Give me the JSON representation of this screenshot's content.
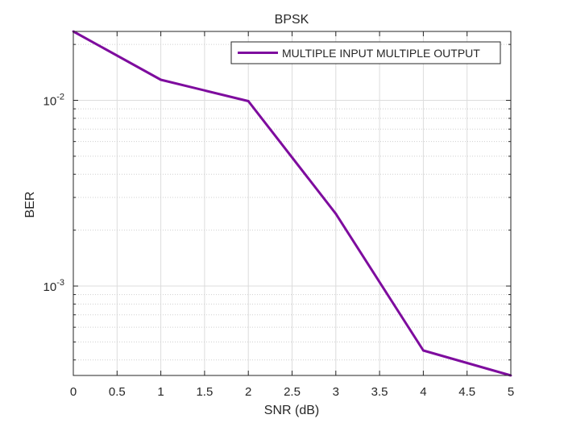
{
  "chart_data": {
    "type": "line",
    "title": "BPSK",
    "xlabel": "SNR (dB)",
    "ylabel": "BER",
    "yscale": "log",
    "xlim": [
      0,
      5
    ],
    "ylim": [
      0.00033,
      0.0235
    ],
    "grid": true,
    "minor_grid": true,
    "legend_location": "top-right",
    "x_ticks": [
      {
        "value": 0,
        "label": "0"
      },
      {
        "value": 0.5,
        "label": "0.5"
      },
      {
        "value": 1,
        "label": "1"
      },
      {
        "value": 1.5,
        "label": "1.5"
      },
      {
        "value": 2,
        "label": "2"
      },
      {
        "value": 2.5,
        "label": "2.5"
      },
      {
        "value": 3,
        "label": "3"
      },
      {
        "value": 3.5,
        "label": "3.5"
      },
      {
        "value": 4,
        "label": "4"
      },
      {
        "value": 4.5,
        "label": "4.5"
      },
      {
        "value": 5,
        "label": "5"
      }
    ],
    "y_ticks": [
      {
        "value": 0.01,
        "base": "10",
        "exp": "-2"
      },
      {
        "value": 0.001,
        "base": "10",
        "exp": "-3"
      }
    ],
    "series": [
      {
        "name": "MULTIPLE INPUT MULTIPLE OUTPUT",
        "color": "#7E0C9E",
        "x": [
          0,
          1,
          2,
          3,
          4,
          5
        ],
        "y": [
          0.0235,
          0.0129,
          0.0099,
          0.00245,
          0.00045,
          0.00033
        ]
      }
    ]
  }
}
